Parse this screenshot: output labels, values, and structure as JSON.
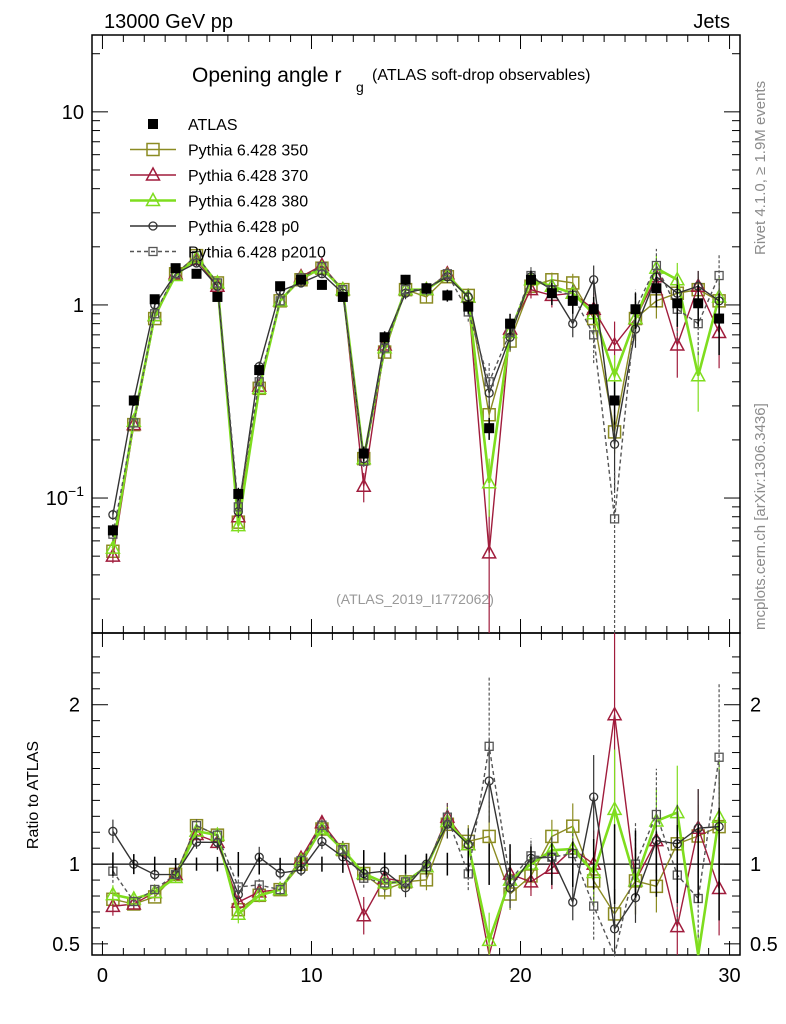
{
  "header": {
    "energy_label": "13000 GeV pp",
    "category_label": "Jets"
  },
  "chart_data": {
    "type": "scatter",
    "title": "Opening angle r",
    "title_subscript": "g",
    "subtitle": "(ATLAS soft-drop observables)",
    "analysis_id": "(ATLAS_2019_I1772062)",
    "side_label_top": "Rivet 4.1.0, ≥ 1.9M events",
    "side_label_bottom": "mcplots.cern.ch [arXiv:1306.3436]",
    "xlabel": "",
    "ylabel": "",
    "ratio_ylabel": "Ratio to ATLAS",
    "xlim": [
      -0.5,
      30.5
    ],
    "ylim": [
      0.02,
      25
    ],
    "ratio_ylim": [
      0.43,
      2.45
    ],
    "x_ticks": [
      "0",
      "10",
      "20",
      "30"
    ],
    "y_ticks": [
      "10−1",
      "1",
      "10"
    ],
    "ratio_ticks": [
      "0.5",
      "1",
      "2"
    ],
    "legend_position": "top-left",
    "x": [
      0.5,
      1.5,
      2.5,
      3.5,
      4.5,
      5.5,
      6.5,
      7.5,
      8.5,
      9.5,
      10.5,
      11.5,
      12.5,
      13.5,
      14.5,
      15.5,
      16.5,
      17.5,
      18.5,
      19.5,
      20.5,
      21.5,
      22.5,
      23.5,
      24.5,
      25.5,
      26.5,
      27.5,
      28.5,
      29.5
    ],
    "series": [
      {
        "name": "ATLAS",
        "style": "data",
        "color": "#000000",
        "values": [
          0.068,
          0.32,
          1.07,
          1.55,
          1.45,
          1.1,
          0.105,
          0.46,
          1.25,
          1.35,
          1.27,
          1.1,
          0.17,
          0.68,
          1.35,
          1.22,
          1.12,
          0.98,
          0.23,
          0.8,
          1.35,
          1.15,
          1.05,
          0.95,
          0.32,
          0.95,
          1.22,
          1.02,
          1.02,
          0.85
        ],
        "errors": [
          0.005,
          0.02,
          0.05,
          0.06,
          0.06,
          0.05,
          0.008,
          0.03,
          0.05,
          0.06,
          0.06,
          0.06,
          0.015,
          0.05,
          0.08,
          0.08,
          0.08,
          0.08,
          0.03,
          0.1,
          0.15,
          0.15,
          0.15,
          0.15,
          0.08,
          0.2,
          0.25,
          0.25,
          0.25,
          0.3
        ]
      },
      {
        "name": "Pythia 6.428 350",
        "style": "square",
        "color": "#8b8b22",
        "values": [
          0.053,
          0.24,
          0.85,
          1.45,
          1.8,
          1.3,
          0.075,
          0.37,
          1.05,
          1.35,
          1.55,
          1.2,
          0.16,
          0.57,
          1.2,
          1.1,
          1.4,
          1.12,
          0.27,
          0.65,
          1.25,
          1.35,
          1.3,
          0.85,
          0.22,
          0.85,
          1.05,
          1.15,
          1.2,
          1.05
        ],
        "errors": [
          0.004,
          0.01,
          0.03,
          0.05,
          0.06,
          0.05,
          0.006,
          0.02,
          0.04,
          0.05,
          0.06,
          0.06,
          0.01,
          0.04,
          0.08,
          0.08,
          0.1,
          0.1,
          0.05,
          0.08,
          0.12,
          0.12,
          0.15,
          0.15,
          0.05,
          0.15,
          0.2,
          0.2,
          0.2,
          0.25
        ]
      },
      {
        "name": "Pythia 6.428 370",
        "style": "triangle",
        "color": "#a01c3c",
        "values": [
          0.05,
          0.24,
          0.88,
          1.45,
          1.72,
          1.25,
          0.08,
          0.38,
          1.05,
          1.4,
          1.6,
          1.2,
          0.115,
          0.62,
          1.2,
          1.2,
          1.45,
          1.1,
          0.052,
          0.75,
          1.2,
          1.12,
          1.15,
          0.95,
          0.62,
          0.85,
          1.4,
          0.62,
          1.25,
          0.72
        ],
        "errors": [
          0.004,
          0.01,
          0.03,
          0.05,
          0.06,
          0.05,
          0.006,
          0.02,
          0.04,
          0.05,
          0.06,
          0.06,
          0.02,
          0.05,
          0.08,
          0.08,
          0.1,
          0.1,
          0.035,
          0.1,
          0.12,
          0.15,
          0.15,
          0.2,
          0.2,
          0.2,
          0.25,
          0.2,
          0.25,
          0.25
        ]
      },
      {
        "name": "Pythia 6.428 380",
        "style": "triangle",
        "color": "#7fdd1e",
        "values": [
          0.055,
          0.25,
          0.88,
          1.42,
          1.75,
          1.3,
          0.072,
          0.37,
          1.05,
          1.38,
          1.55,
          1.2,
          0.16,
          0.6,
          1.2,
          1.2,
          1.42,
          1.1,
          0.12,
          0.72,
          1.35,
          1.25,
          1.15,
          0.9,
          0.43,
          0.85,
          1.55,
          1.35,
          0.43,
          1.1
        ],
        "errors": [
          0.004,
          0.01,
          0.03,
          0.05,
          0.06,
          0.05,
          0.006,
          0.02,
          0.04,
          0.05,
          0.06,
          0.06,
          0.01,
          0.04,
          0.08,
          0.08,
          0.1,
          0.1,
          0.04,
          0.1,
          0.12,
          0.15,
          0.15,
          0.2,
          0.12,
          0.2,
          0.25,
          0.3,
          0.15,
          0.3
        ]
      },
      {
        "name": "Pythia 6.428 p0",
        "style": "circle",
        "color": "#333333",
        "values": [
          0.082,
          0.32,
          1.0,
          1.45,
          1.65,
          1.25,
          0.085,
          0.48,
          1.18,
          1.3,
          1.45,
          1.15,
          0.16,
          0.65,
          1.15,
          1.22,
          1.4,
          1.1,
          0.35,
          0.68,
          1.4,
          1.2,
          0.8,
          1.35,
          0.19,
          0.75,
          1.4,
          1.15,
          1.25,
          1.05
        ],
        "errors": [
          0.005,
          0.02,
          0.04,
          0.05,
          0.06,
          0.05,
          0.006,
          0.03,
          0.05,
          0.05,
          0.06,
          0.06,
          0.01,
          0.05,
          0.08,
          0.08,
          0.1,
          0.1,
          0.06,
          0.1,
          0.12,
          0.15,
          0.12,
          0.25,
          0.08,
          0.15,
          0.25,
          0.25,
          0.25,
          0.3
        ]
      },
      {
        "name": "Pythia 6.428 p2010",
        "style": "square-dashed",
        "color": "#555555",
        "values": [
          0.065,
          0.245,
          0.9,
          1.45,
          1.8,
          1.3,
          0.09,
          0.4,
          1.05,
          1.38,
          1.58,
          1.2,
          0.155,
          0.6,
          1.2,
          1.2,
          1.45,
          0.92,
          0.4,
          0.72,
          1.42,
          1.2,
          1.12,
          0.7,
          0.078,
          0.95,
          1.6,
          0.95,
          0.8,
          1.42
        ],
        "errors": [
          0.005,
          0.01,
          0.03,
          0.05,
          0.06,
          0.05,
          0.007,
          0.02,
          0.04,
          0.05,
          0.06,
          0.06,
          0.01,
          0.04,
          0.08,
          0.08,
          0.1,
          0.1,
          0.1,
          0.1,
          0.15,
          0.15,
          0.15,
          0.2,
          0.06,
          0.25,
          0.35,
          0.3,
          0.25,
          0.4
        ]
      }
    ]
  }
}
